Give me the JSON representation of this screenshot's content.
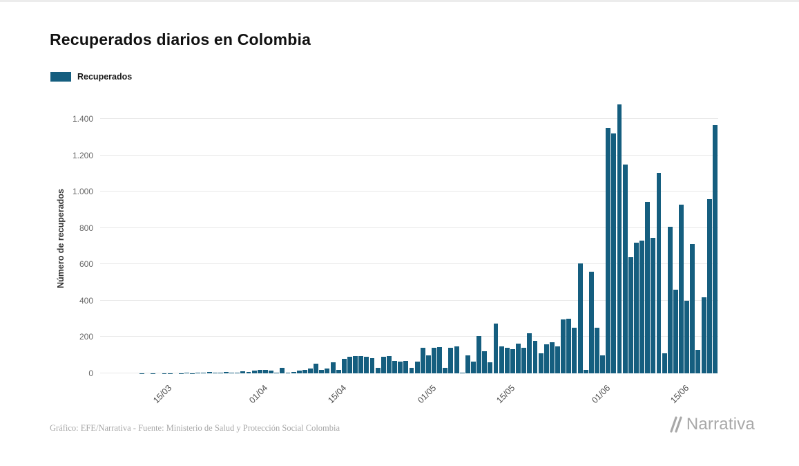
{
  "page": {
    "background": "#ffffff"
  },
  "title": "Recuperados diarios en Colombia",
  "legend": {
    "label": "Recuperados"
  },
  "footer": {
    "credit": "Gráfico: EFE/Narrativa - Fuente: Ministerio de Salud y Protección Social Colombia",
    "brand": "Narrativa"
  },
  "chart_data": {
    "type": "bar",
    "title": "Recuperados diarios en Colombia",
    "xlabel": "",
    "ylabel": "Número de recuperados",
    "ylim": [
      0,
      1400
    ],
    "grid": true,
    "legend_position": "top-left",
    "bar_color": "#155e7f",
    "gridline_color": "#e8e8e8",
    "y_ticks": [
      {
        "value": 0,
        "label": "0"
      },
      {
        "value": 200,
        "label": "200"
      },
      {
        "value": 400,
        "label": "400"
      },
      {
        "value": 600,
        "label": "600"
      },
      {
        "value": 800,
        "label": "800"
      },
      {
        "value": 1000,
        "label": "1.000"
      },
      {
        "value": 1200,
        "label": "1.200"
      },
      {
        "value": 1400,
        "label": "1.400"
      }
    ],
    "x_tick_labels": [
      "15/03",
      "01/04",
      "15/04",
      "01/05",
      "15/05",
      "01/06",
      "15/06"
    ],
    "series": [
      {
        "name": "Recuperados",
        "dates": [
          "03/03",
          "04/03",
          "05/03",
          "06/03",
          "07/03",
          "08/03",
          "09/03",
          "10/03",
          "11/03",
          "12/03",
          "13/03",
          "14/03",
          "15/03",
          "16/03",
          "17/03",
          "18/03",
          "19/03",
          "20/03",
          "21/03",
          "22/03",
          "23/03",
          "24/03",
          "25/03",
          "26/03",
          "27/03",
          "28/03",
          "29/03",
          "30/03",
          "31/03",
          "01/04",
          "02/04",
          "03/04",
          "04/04",
          "05/04",
          "06/04",
          "07/04",
          "08/04",
          "09/04",
          "10/04",
          "11/04",
          "12/04",
          "13/04",
          "14/04",
          "15/04",
          "16/04",
          "17/04",
          "18/04",
          "19/04",
          "20/04",
          "21/04",
          "22/04",
          "23/04",
          "24/04",
          "25/04",
          "26/04",
          "27/04",
          "28/04",
          "29/04",
          "30/04",
          "01/05",
          "02/05",
          "03/05",
          "04/05",
          "05/05",
          "06/05",
          "07/05",
          "08/05",
          "09/05",
          "10/05",
          "11/05",
          "12/05",
          "13/05",
          "14/05",
          "15/05",
          "16/05",
          "17/05",
          "18/05",
          "19/05",
          "20/05",
          "21/05",
          "22/05",
          "23/05",
          "24/05",
          "25/05",
          "26/05",
          "27/05",
          "28/05",
          "29/05",
          "30/05",
          "31/05",
          "01/06",
          "02/06",
          "03/06",
          "04/06",
          "05/06",
          "06/06",
          "07/06",
          "08/06",
          "09/06",
          "10/06",
          "11/06",
          "12/06",
          "13/06",
          "14/06",
          "15/06",
          "16/06",
          "17/06",
          "18/06",
          "19/06",
          "20/06"
        ],
        "values": [
          0,
          0,
          0,
          0,
          0,
          0,
          0,
          1,
          0,
          1,
          0,
          1,
          1,
          0,
          1,
          2,
          1,
          2,
          3,
          6,
          3,
          2,
          7,
          4,
          2,
          10,
          8,
          15,
          18,
          20,
          15,
          5,
          32,
          4,
          8,
          15,
          20,
          25,
          55,
          18,
          28,
          60,
          20,
          80,
          90,
          95,
          95,
          90,
          85,
          30,
          90,
          95,
          70,
          65,
          70,
          30,
          65,
          140,
          100,
          140,
          145,
          30,
          140,
          150,
          5,
          100,
          65,
          205,
          120,
          60,
          275,
          150,
          140,
          135,
          165,
          140,
          220,
          180,
          110,
          160,
          170,
          150,
          295,
          300,
          250,
          605,
          20,
          560,
          250,
          100,
          1350,
          1320,
          1480,
          1150,
          640,
          720,
          730,
          945,
          745,
          1105,
          110,
          805,
          460,
          930,
          400,
          710,
          130,
          420,
          960,
          1365
        ]
      }
    ]
  }
}
